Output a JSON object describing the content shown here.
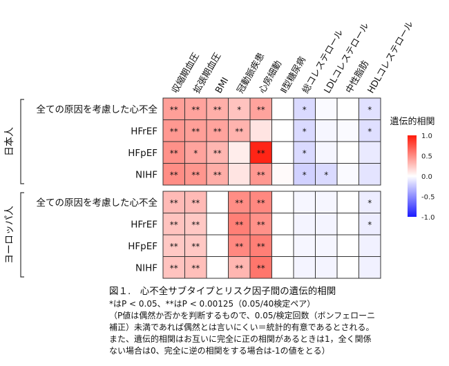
{
  "chart_data": {
    "type": "heatmap",
    "columns": [
      "収縮期血圧",
      "拡張期血圧",
      "BMI",
      "冠動脈疾患",
      "心房細動",
      "Ⅱ型糖尿病",
      "総コレステロール",
      "LDLコレステロール",
      "中性脂肪",
      "HDLコレステロール"
    ],
    "panels": [
      {
        "label": "日本人",
        "rows": [
          {
            "label": "全ての原因を考慮した心不全",
            "values": [
              0.42,
              0.4,
              0.35,
              0.26,
              0.4,
              0.0,
              -0.16,
              -0.02,
              0.0,
              -0.13
            ],
            "marks": [
              "**",
              "**",
              "**",
              "*",
              "**",
              "",
              "*",
              "",
              "",
              "*"
            ]
          },
          {
            "label": "HFrEF",
            "values": [
              0.45,
              0.42,
              0.4,
              0.33,
              0.12,
              0.0,
              -0.16,
              -0.04,
              -0.02,
              -0.14
            ],
            "marks": [
              "**",
              "**",
              "**",
              "**",
              "",
              "",
              "*",
              "",
              "",
              "*"
            ]
          },
          {
            "label": "HFpEF",
            "values": [
              0.48,
              0.4,
              0.32,
              0.08,
              0.95,
              0.0,
              -0.16,
              -0.04,
              0.0,
              -0.09
            ],
            "marks": [
              "**",
              "*",
              "**",
              "",
              "**",
              "",
              "*",
              "",
              "",
              ""
            ]
          },
          {
            "label": "NIHF",
            "values": [
              0.5,
              0.46,
              0.36,
              0.12,
              0.45,
              0.02,
              -0.2,
              -0.16,
              -0.02,
              -0.12
            ],
            "marks": [
              "**",
              "**",
              "**",
              "",
              "**",
              "",
              "*",
              "*",
              "",
              ""
            ]
          }
        ]
      },
      {
        "label": "ヨーロッパ人",
        "rows": [
          {
            "label": "全ての原因を考慮した心不全",
            "values": [
              0.3,
              0.3,
              0.0,
              0.5,
              0.52,
              0.0,
              -0.04,
              -0.04,
              0.0,
              -0.08
            ],
            "marks": [
              "**",
              "**",
              "",
              "**",
              "**",
              "",
              "",
              "",
              "",
              "*"
            ]
          },
          {
            "label": "HFrEF",
            "values": [
              0.26,
              0.24,
              0.0,
              0.56,
              0.48,
              0.0,
              -0.05,
              -0.05,
              0.0,
              -0.08
            ],
            "marks": [
              "**",
              "**",
              "",
              "**",
              "**",
              "",
              "",
              "",
              "",
              "*"
            ]
          },
          {
            "label": "HFpEF",
            "values": [
              0.24,
              0.24,
              0.0,
              0.52,
              0.56,
              0.0,
              -0.04,
              -0.04,
              0.0,
              -0.06
            ],
            "marks": [
              "**",
              "**",
              "",
              "**",
              "**",
              "",
              "",
              "",
              "",
              ""
            ]
          },
          {
            "label": "NIHF",
            "values": [
              0.26,
              0.28,
              0.0,
              0.32,
              0.6,
              0.0,
              -0.05,
              -0.05,
              0.0,
              -0.06
            ],
            "marks": [
              "**",
              "**",
              "",
              "**",
              "**",
              "",
              "",
              "",
              "",
              ""
            ]
          }
        ]
      }
    ],
    "colorbar": {
      "title": "遺伝的相関",
      "range": [
        -1.0,
        1.0
      ],
      "ticks": [
        "1.0",
        "0.5",
        "0.0",
        "-0.5",
        "-1.0"
      ],
      "tick_values": [
        1.0,
        0.5,
        0.0,
        -0.5,
        -1.0
      ],
      "colors": {
        "low": "#1a1aff",
        "mid": "#ffffff",
        "high": "#ff1a0a"
      }
    }
  },
  "caption": {
    "title": "図１.　心不全サブタイプとリスク因子間の遺伝的相関",
    "lines": [
      "*はP < 0.05、**はP < 0.00125（0.05/40検定ペア）",
      "（P値は偶然か否かを判断するもので、0.05/検定回数（ボンフェローニ",
      "補正）未満であれば偶然とは言いにくい＝統計的有意であるとされる。",
      "また、遺伝的相関はお互いに完全に正の相関があるときは1，全く関係",
      "ない場合は0、完全に逆の相関をする場合は-1の値をとる）"
    ]
  }
}
